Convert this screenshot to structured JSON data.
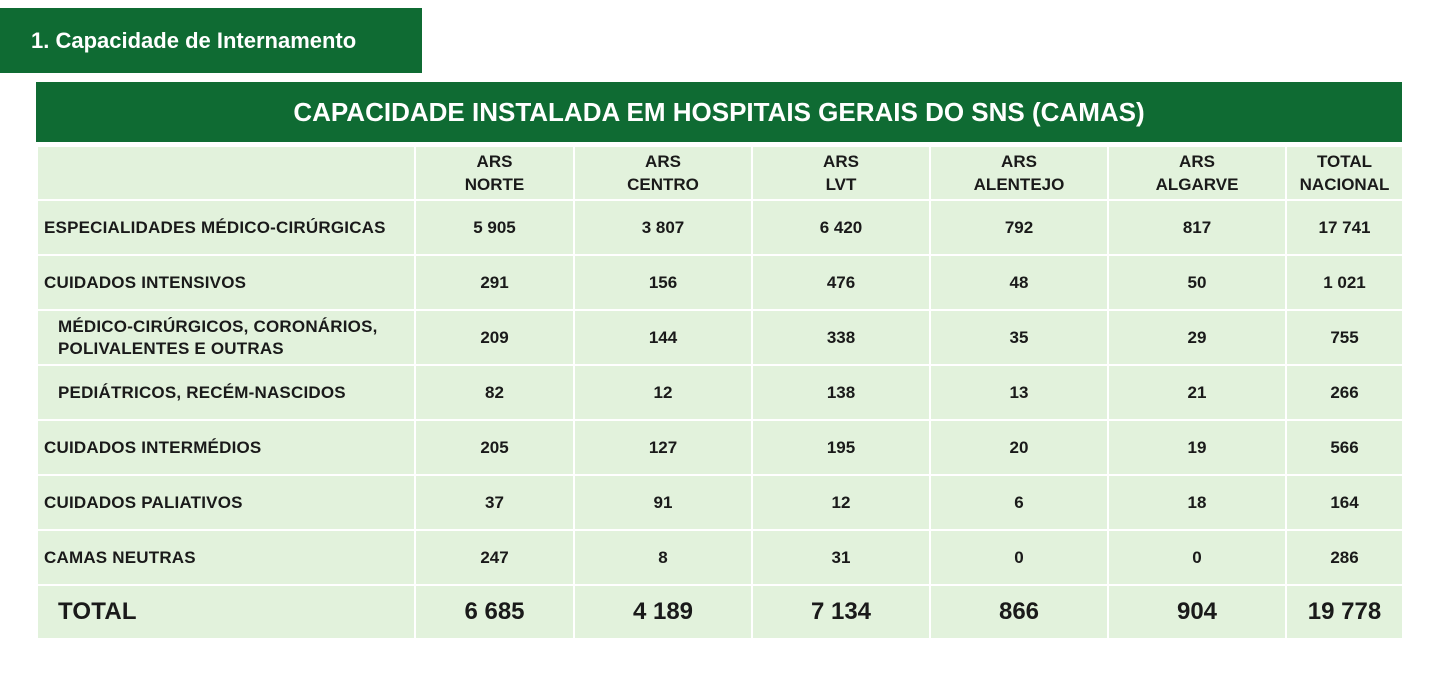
{
  "section": {
    "title": "1. Capacidade de Internamento"
  },
  "table": {
    "title": "CAPACIDADE INSTALADA EM HOSPITAIS GERAIS DO SNS (CAMAS)",
    "columns": [
      {
        "line1": "ARS",
        "line2": "NORTE"
      },
      {
        "line1": "ARS",
        "line2": "CENTRO"
      },
      {
        "line1": "ARS",
        "line2": "LVT"
      },
      {
        "line1": "ARS",
        "line2": "ALENTEJO"
      },
      {
        "line1": "ARS",
        "line2": "ALGARVE"
      },
      {
        "line1": "TOTAL",
        "line2": "NACIONAL"
      }
    ],
    "rows": [
      {
        "label": "ESPECIALIDADES MÉDICO-CIRÚRGICAS",
        "values": [
          "5 905",
          "3 807",
          "6 420",
          "792",
          "817",
          "17 741"
        ]
      },
      {
        "label": "CUIDADOS INTENSIVOS",
        "values": [
          "291",
          "156",
          "476",
          "48",
          "50",
          "1 021"
        ]
      },
      {
        "label": "MÉDICO-CIRÚRGICOS, CORONÁRIOS, POLIVALENTES E OUTRAS",
        "values": [
          "209",
          "144",
          "338",
          "35",
          "29",
          "755"
        ]
      },
      {
        "label": "PEDIÁTRICOS, RECÉM-NASCIDOS",
        "values": [
          "82",
          "12",
          "138",
          "13",
          "21",
          "266"
        ]
      },
      {
        "label": "CUIDADOS INTERMÉDIOS",
        "values": [
          "205",
          "127",
          "195",
          "20",
          "19",
          "566"
        ]
      },
      {
        "label": "CUIDADOS PALIATIVOS",
        "values": [
          "37",
          "91",
          "12",
          "6",
          "18",
          "164"
        ]
      },
      {
        "label": "CAMAS NEUTRAS",
        "values": [
          "247",
          "8",
          "31",
          "0",
          "0",
          "286"
        ]
      }
    ],
    "total": {
      "label": "TOTAL",
      "values": [
        "6 685",
        "4 189",
        "7 134",
        "866",
        "904",
        "19 778"
      ]
    }
  },
  "colors": {
    "header_green": "#0f6b33",
    "cell_bg": "#e2f2dc"
  }
}
